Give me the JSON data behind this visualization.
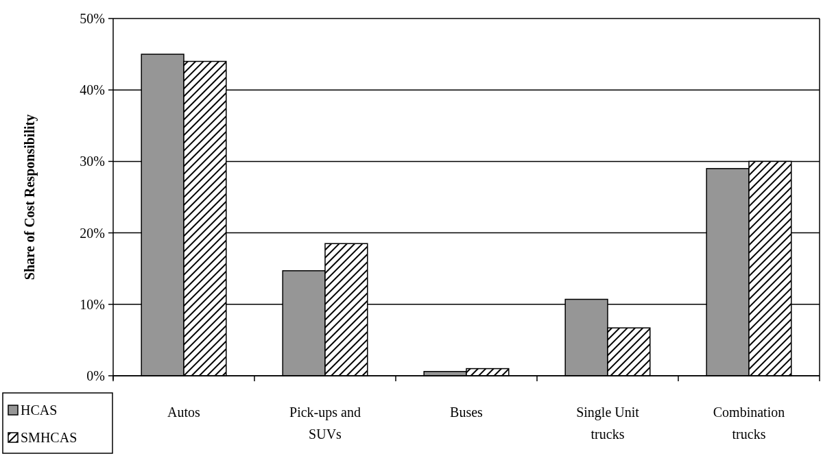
{
  "chart_data": {
    "type": "bar",
    "ylabel": "Share of Cost Responsibility",
    "categories": [
      "Autos",
      "Pick-ups and SUVs",
      "Buses",
      "Single Unit trucks",
      "Combination trucks"
    ],
    "series": [
      {
        "name": "HCAS",
        "color": "#969696",
        "values": [
          45.0,
          14.7,
          0.6,
          10.7,
          29.0
        ]
      },
      {
        "name": "SMHCAS",
        "color": "#000000",
        "values": [
          44.0,
          18.5,
          1.0,
          6.7,
          30.0
        ]
      }
    ],
    "ylim": [
      0,
      50
    ],
    "yticks": [
      {
        "value": 0,
        "label": "0%"
      },
      {
        "value": 10,
        "label": "10%"
      },
      {
        "value": 20,
        "label": "20%"
      },
      {
        "value": 30,
        "label": "30%"
      },
      {
        "value": 40,
        "label": "40%"
      },
      {
        "value": 50,
        "label": "50%"
      }
    ],
    "grid": "y",
    "legend": "bottom left"
  }
}
